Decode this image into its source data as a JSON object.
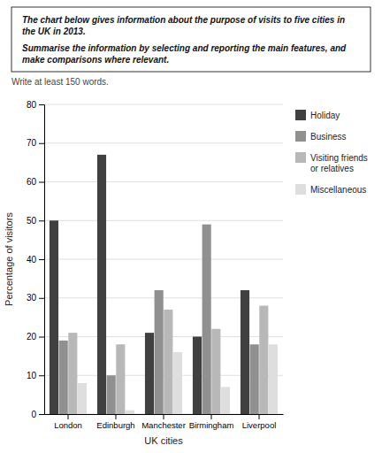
{
  "chart_data": {
    "type": "bar",
    "title": "The chart below gives information about the purpose of visits to five cities in the UK in 2013.",
    "subtitle": "Summarise the information by selecting and reporting the main features, and make comparisons where relevant.",
    "annotations": [
      "Write at least 150 words."
    ],
    "categories": [
      "London",
      "Edinburgh",
      "Manchester",
      "Birmingham",
      "Liverpool"
    ],
    "series": [
      {
        "name": "Holiday",
        "color": "#404040",
        "values": [
          50,
          67,
          21,
          20,
          32
        ]
      },
      {
        "name": "Business",
        "color": "#909090",
        "values": [
          19,
          10,
          32,
          49,
          18
        ]
      },
      {
        "name": "Visiting friends\nor relatives",
        "color": "#b8b8b8",
        "values": [
          21,
          18,
          27,
          22,
          28
        ]
      },
      {
        "name": "Miscellaneous",
        "color": "#dedede",
        "values": [
          8,
          1,
          16,
          7,
          18
        ]
      }
    ],
    "xlabel": "UK cities",
    "ylabel": "Percentage of visitors",
    "ylim": [
      0,
      80
    ],
    "yticks": [
      0,
      10,
      20,
      30,
      40,
      50,
      60,
      70,
      80
    ],
    "grid": true,
    "legend": "right"
  }
}
